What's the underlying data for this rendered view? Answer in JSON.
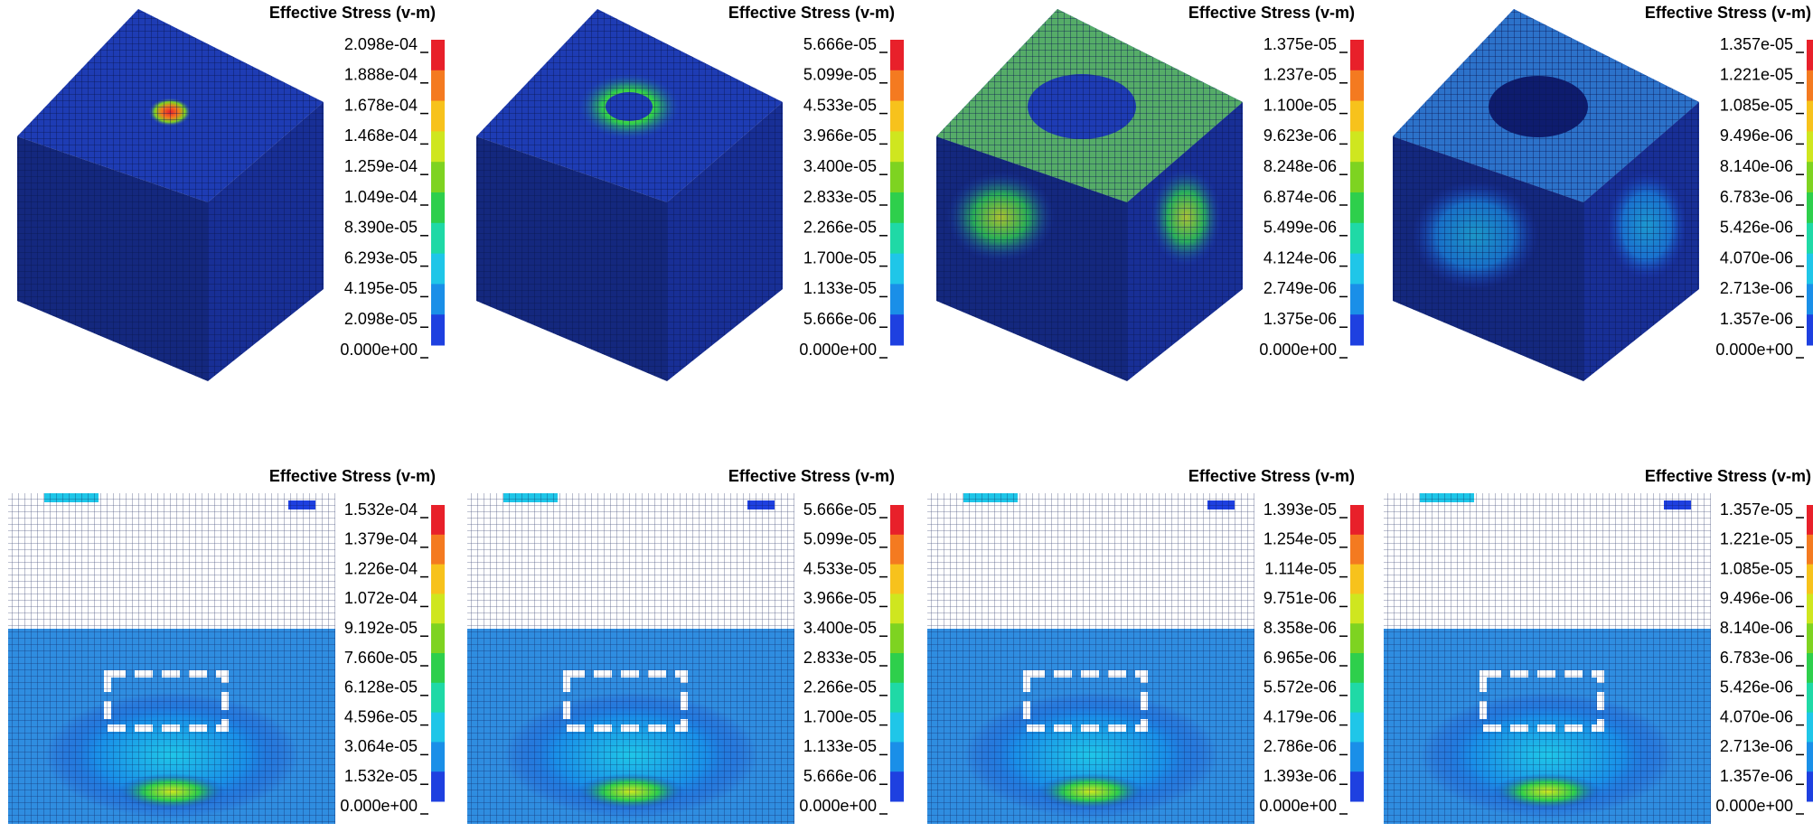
{
  "panels": [
    {
      "title": "Effective Stress (v-m)",
      "legend_labels": [
        "2.098e-04",
        "1.888e-04",
        "1.678e-04",
        "1.468e-04",
        "1.259e-04",
        "1.049e-04",
        "8.390e-05",
        "6.293e-05",
        "4.195e-05",
        "2.098e-05",
        "0.000e+00"
      ]
    },
    {
      "title": "Effective Stress (v-m)",
      "legend_labels": [
        "5.666e-05",
        "5.099e-05",
        "4.533e-05",
        "3.966e-05",
        "3.400e-05",
        "2.833e-05",
        "2.266e-05",
        "1.700e-05",
        "1.133e-05",
        "5.666e-06",
        "0.000e+00"
      ]
    },
    {
      "title": "Effective Stress (v-m)",
      "legend_labels": [
        "1.375e-05",
        "1.237e-05",
        "1.100e-05",
        "9.623e-06",
        "8.248e-06",
        "6.874e-06",
        "5.499e-06",
        "4.124e-06",
        "2.749e-06",
        "1.375e-06",
        "0.000e+00"
      ]
    },
    {
      "title": "Effective Stress (v-m)",
      "legend_labels": [
        "1.357e-05",
        "1.221e-05",
        "1.085e-05",
        "9.496e-06",
        "8.140e-06",
        "6.783e-06",
        "5.426e-06",
        "4.070e-06",
        "2.713e-06",
        "1.357e-06",
        "0.000e+00"
      ]
    },
    {
      "title": "Effective Stress (v-m)",
      "legend_labels": [
        "1.532e-04",
        "1.379e-04",
        "1.226e-04",
        "1.072e-04",
        "9.192e-05",
        "7.660e-05",
        "6.128e-05",
        "4.596e-05",
        "3.064e-05",
        "1.532e-05",
        "0.000e+00"
      ]
    },
    {
      "title": "Effective Stress (v-m)",
      "legend_labels": [
        "5.666e-05",
        "5.099e-05",
        "4.533e-05",
        "3.966e-05",
        "3.400e-05",
        "2.833e-05",
        "2.266e-05",
        "1.700e-05",
        "1.133e-05",
        "5.666e-06",
        "0.000e+00"
      ]
    },
    {
      "title": "Effective Stress (v-m)",
      "legend_labels": [
        "1.393e-05",
        "1.254e-05",
        "1.114e-05",
        "9.751e-06",
        "8.358e-06",
        "6.965e-06",
        "5.572e-06",
        "4.179e-06",
        "2.786e-06",
        "1.393e-06",
        "0.000e+00"
      ]
    },
    {
      "title": "Effective Stress (v-m)",
      "legend_labels": [
        "1.357e-05",
        "1.221e-05",
        "1.085e-05",
        "9.496e-06",
        "8.140e-06",
        "6.783e-06",
        "5.426e-06",
        "4.070e-06",
        "2.713e-06",
        "1.357e-06",
        "0.000e+00"
      ]
    }
  ]
}
